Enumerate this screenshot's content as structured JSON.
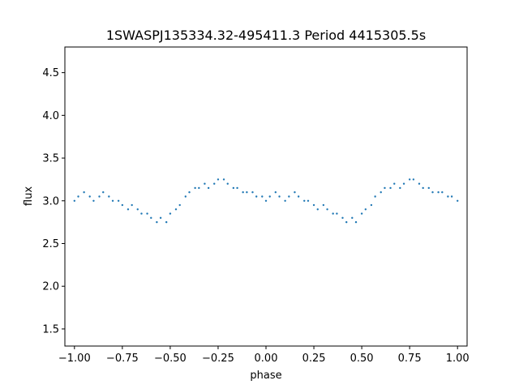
{
  "chart_data": {
    "type": "scatter",
    "title": "1SWASPJ135334.32-495411.3 Period 4415305.5s",
    "xlabel": "phase",
    "ylabel": "flux",
    "xlim": [
      -1.05,
      1.05
    ],
    "ylim": [
      1.3,
      4.8
    ],
    "x_ticks": [
      -1.0,
      -0.75,
      -0.5,
      -0.25,
      0.0,
      0.25,
      0.5,
      0.75,
      1.0
    ],
    "x_tick_labels": [
      "−1.00",
      "−0.75",
      "−0.50",
      "−0.25",
      "0.00",
      "0.25",
      "0.50",
      "0.75",
      "1.00"
    ],
    "y_ticks": [
      1.5,
      2.0,
      2.5,
      3.0,
      3.5,
      4.0,
      4.5
    ],
    "y_tick_labels": [
      "1.5",
      "2.0",
      "2.5",
      "3.0",
      "3.5",
      "4.0",
      "4.5"
    ],
    "grid": false,
    "legend": "none",
    "marker_color": "#1f77b4",
    "series": [
      {
        "x": [
          -1.0,
          -0.98,
          -0.95,
          -0.92,
          -0.9,
          -0.87,
          -0.85,
          -0.82,
          -0.8,
          -0.77,
          -0.75,
          -0.72,
          -0.7,
          -0.67,
          -0.65,
          -0.62,
          -0.6,
          -0.57,
          -0.55,
          -0.52,
          -0.5,
          -0.47,
          -0.45,
          -0.42,
          -0.4,
          -0.37,
          -0.35,
          -0.32,
          -0.3,
          -0.27,
          -0.25,
          -0.22,
          -0.2,
          -0.17,
          -0.15,
          -0.12,
          -0.1,
          -0.07,
          -0.05,
          -0.02,
          0.0,
          0.02,
          0.05,
          0.07,
          0.1,
          0.12,
          0.15,
          0.17,
          0.2,
          0.22,
          0.25,
          0.27,
          0.3,
          0.32,
          0.35,
          0.37,
          0.4,
          0.42,
          0.45,
          0.47,
          0.5,
          0.52,
          0.55,
          0.57,
          0.6,
          0.62,
          0.65,
          0.67,
          0.7,
          0.72,
          0.75,
          0.77,
          0.8,
          0.82,
          0.85,
          0.87,
          0.9,
          0.92,
          0.95,
          0.97,
          1.0
        ],
        "y": [
          3.0,
          3.05,
          3.1,
          3.05,
          3.0,
          3.05,
          3.1,
          3.05,
          3.0,
          3.0,
          2.95,
          2.9,
          2.95,
          2.9,
          2.85,
          2.85,
          2.8,
          2.75,
          2.8,
          2.75,
          2.85,
          2.9,
          2.95,
          3.05,
          3.1,
          3.15,
          3.15,
          3.2,
          3.15,
          3.2,
          3.25,
          3.25,
          3.2,
          3.15,
          3.15,
          3.1,
          3.1,
          3.1,
          3.05,
          3.05,
          3.0,
          3.05,
          3.1,
          3.05,
          3.0,
          3.05,
          3.1,
          3.05,
          3.0,
          3.0,
          2.95,
          2.9,
          2.95,
          2.9,
          2.85,
          2.85,
          2.8,
          2.75,
          2.8,
          2.75,
          2.85,
          2.9,
          2.95,
          3.05,
          3.1,
          3.15,
          3.15,
          3.2,
          3.15,
          3.2,
          3.25,
          3.25,
          3.2,
          3.15,
          3.15,
          3.1,
          3.1,
          3.1,
          3.05,
          3.05,
          3.0
        ]
      }
    ]
  }
}
